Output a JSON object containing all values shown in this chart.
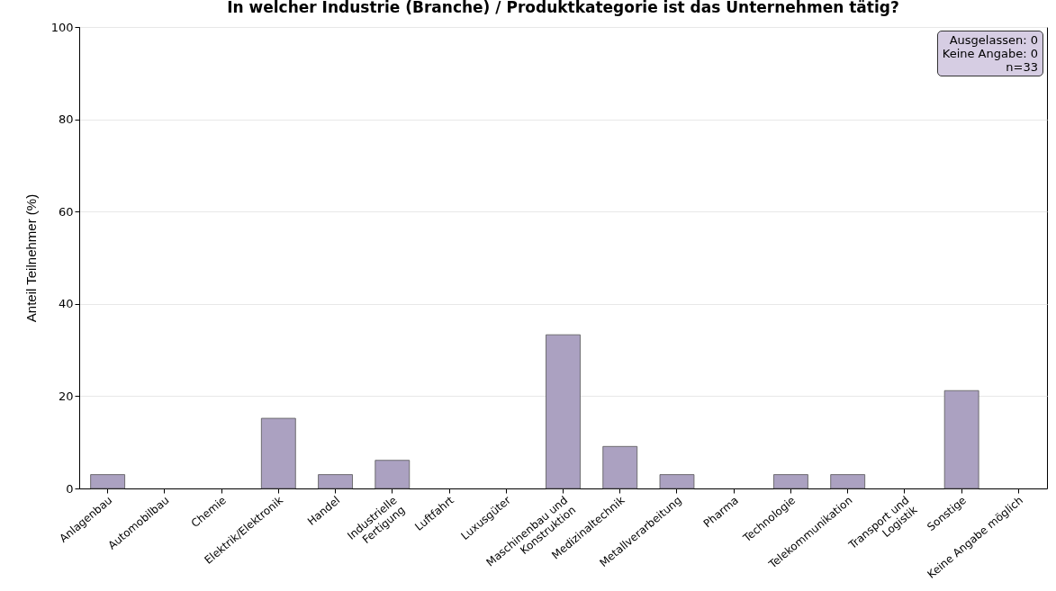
{
  "chart_data": {
    "type": "bar",
    "title": "In welcher Industrie (Branche) / Produktkategorie ist das Unternehmen tätig?",
    "ylabel": "Anteil Teilnehmer (%)",
    "categories": [
      "Anlagenbau",
      "Automobilbau",
      "Chemie",
      "Elektrik/Elektronik",
      "Handel",
      "Industrielle\nFertigung",
      "Luftfahrt",
      "Luxusgüter",
      "Maschinenbau und\nKonstruktion",
      "Medizinaltechnik",
      "Metallverarbeitung",
      "Pharma",
      "Technologie",
      "Telekommunikation",
      "Transport und\nLogistik",
      "Sonstige",
      "Keine Angabe möglich"
    ],
    "values": [
      3.0,
      0,
      0,
      15.2,
      3.0,
      6.1,
      0,
      0,
      33.3,
      9.1,
      3.0,
      0,
      3.0,
      3.0,
      0,
      21.2,
      0
    ],
    "color": "#aba1c1",
    "ylim": [
      0,
      100
    ],
    "yticks": [
      0,
      20,
      40,
      60,
      80,
      100
    ],
    "grid": "y",
    "annotations": [
      "Ausgelassen: 0",
      "Keine Angabe: 0",
      "n=33"
    ]
  }
}
